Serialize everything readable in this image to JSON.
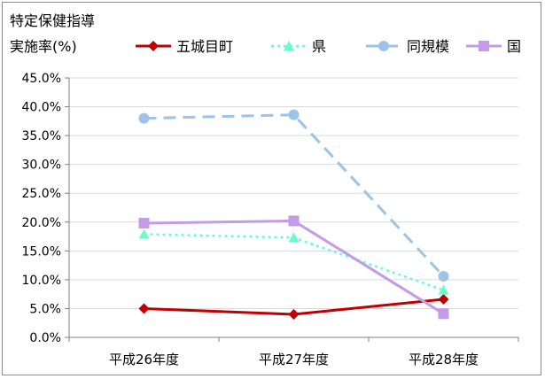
{
  "chart_data": {
    "type": "line",
    "title": [
      "特定保健指導",
      "実施率(%)"
    ],
    "categories": [
      "平成26年度",
      "平成27年度",
      "平成28年度"
    ],
    "ylim": [
      0,
      45
    ],
    "ytick_step": 5,
    "ytick_format": "percent_1dp",
    "grid": "horizontal",
    "legend_position": "top",
    "series": [
      {
        "name": "五城目町",
        "values": [
          5.0,
          4.0,
          6.6
        ],
        "color": "#c00000",
        "line_style": "solid",
        "marker": "diamond"
      },
      {
        "name": "県",
        "values": [
          17.9,
          17.3,
          8.2
        ],
        "color": "#66ffcc",
        "line_style": "dotted",
        "marker": "triangle"
      },
      {
        "name": "同規模",
        "values": [
          38.0,
          38.6,
          10.6
        ],
        "color": "#9dc3e6",
        "line_style": "dashed",
        "marker": "circle"
      },
      {
        "name": "国",
        "values": [
          19.8,
          20.2,
          4.1
        ],
        "color": "#c39be6",
        "line_style": "solid",
        "marker": "square"
      }
    ]
  }
}
